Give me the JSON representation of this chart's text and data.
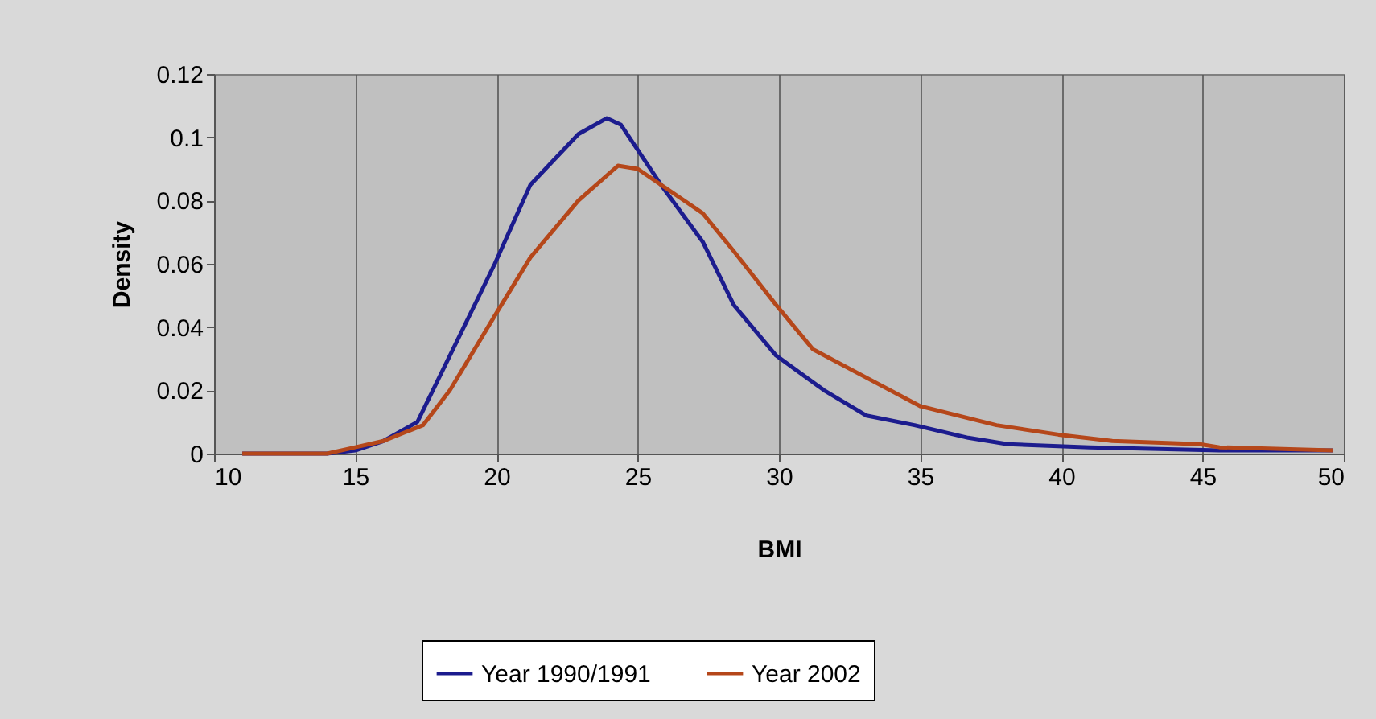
{
  "chart_data": {
    "type": "line",
    "xlabel": "BMI",
    "ylabel": "Density",
    "xlim": [
      10,
      50
    ],
    "xticks": [
      10,
      15,
      20,
      25,
      30,
      35,
      40,
      45,
      50
    ],
    "ylim": [
      0,
      0.12
    ],
    "yticks": [
      0,
      0.02,
      0.04,
      0.06,
      0.08,
      0.1,
      0.12
    ],
    "grid": "x",
    "legend": "bottom",
    "marker": "none",
    "line_style": "solid",
    "series": [
      {
        "name": "Year 1990/1991",
        "color": "#1c1c8e",
        "x": [
          11,
          14,
          15,
          16,
          17.2,
          18.35,
          19.94,
          21.2,
          22.9,
          23.9,
          24.4,
          25.9,
          27.3,
          28.4,
          29.9,
          31.6,
          33.1,
          34.8,
          36.7,
          38.1,
          41,
          45.6,
          49.6
        ],
        "values": [
          0,
          0,
          0.001,
          0.004,
          0.01,
          0.031,
          0.06,
          0.085,
          0.101,
          0.106,
          0.104,
          0.084,
          0.067,
          0.047,
          0.031,
          0.02,
          0.012,
          0.009,
          0.005,
          0.003,
          0.002,
          0.001,
          0.001
        ]
      },
      {
        "name": "Year 2002",
        "color": "#b5471a",
        "x": [
          11,
          14,
          15,
          16,
          17.4,
          18.35,
          19.9,
          21.2,
          22.9,
          24.3,
          25,
          27.3,
          28.4,
          29.9,
          31.2,
          33.1,
          35,
          37.7,
          39.9,
          41.8,
          44.9,
          45.6,
          49.6
        ],
        "values": [
          0,
          0,
          0.002,
          0.004,
          0.009,
          0.02,
          0.043,
          0.062,
          0.08,
          0.091,
          0.09,
          0.076,
          0.064,
          0.047,
          0.033,
          0.024,
          0.015,
          0.009,
          0.006,
          0.004,
          0.003,
          0.002,
          0.001
        ]
      }
    ]
  }
}
